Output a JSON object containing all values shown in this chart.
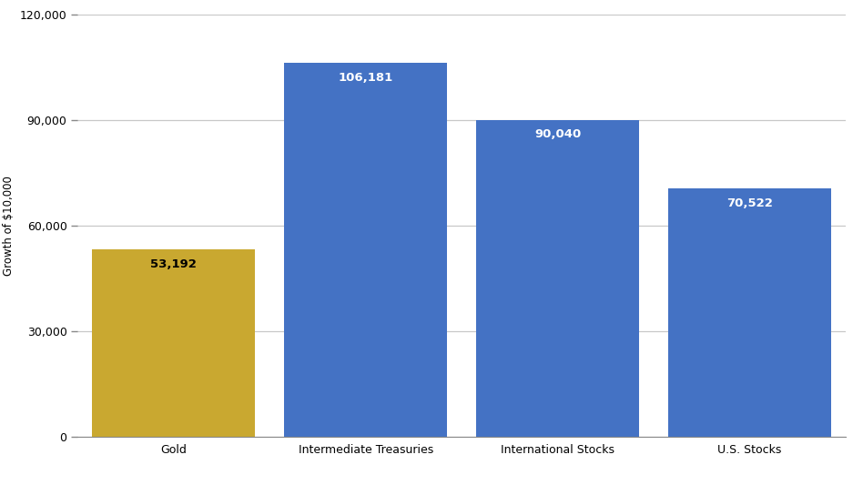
{
  "categories": [
    "Gold",
    "Intermediate Treasuries",
    "International Stocks",
    "U.S. Stocks"
  ],
  "values": [
    53192,
    106181,
    90040,
    70522
  ],
  "bar_colors": [
    "#c9a830",
    "#4472c4",
    "#4472c4",
    "#4472c4"
  ],
  "label_colors": [
    "#000000",
    "#ffffff",
    "#ffffff",
    "#ffffff"
  ],
  "ylabel": "Growth of $10,000",
  "ylim": [
    0,
    120000
  ],
  "yticks": [
    0,
    30000,
    60000,
    90000,
    120000
  ],
  "background_color": "#ffffff",
  "grid_color": "#c8c8c8",
  "bar_width": 0.85,
  "label_fontsize": 9.5,
  "tick_fontsize": 9,
  "ylabel_fontsize": 8.5,
  "tick_color": "#888888"
}
